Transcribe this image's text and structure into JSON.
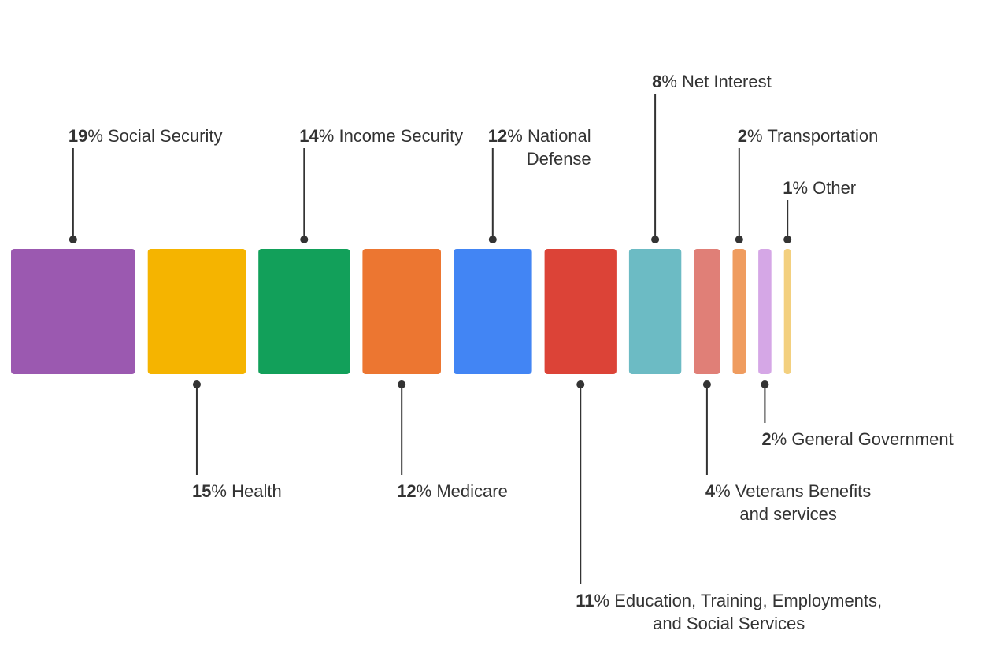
{
  "chart_data": {
    "type": "bar",
    "title": "",
    "unit_suffix": "%",
    "categories": [
      "Social Security",
      "Health",
      "Income Security",
      "Medicare",
      "National Defense",
      "Education, Training, Employments, and Social Services",
      "Net Interest",
      "Veterans Benefits and services",
      "Transportation",
      "General Government",
      "Other"
    ],
    "values": [
      19,
      15,
      14,
      12,
      12,
      11,
      8,
      4,
      2,
      2,
      1
    ],
    "colors": [
      "#9b59b0",
      "#f5b400",
      "#12a05a",
      "#ec7631",
      "#4285f4",
      "#dc4337",
      "#6cbbc4",
      "#e07f77",
      "#ef9c5f",
      "#d5a7e6",
      "#f3d07f"
    ],
    "labels": [
      {
        "pct": "19",
        "lines": [
          "% Social Security"
        ],
        "side": "top"
      },
      {
        "pct": "15",
        "lines": [
          "% Health"
        ],
        "side": "bottom"
      },
      {
        "pct": "14",
        "lines": [
          "% Income Security"
        ],
        "side": "top"
      },
      {
        "pct": "12",
        "lines": [
          "% Medicare"
        ],
        "side": "bottom"
      },
      {
        "pct": "12",
        "lines": [
          "% National",
          "Defense"
        ],
        "side": "top"
      },
      {
        "pct": "11",
        "lines": [
          "% Education, Training, Employments,",
          "and Social Services"
        ],
        "side": "bottom"
      },
      {
        "pct": "8",
        "lines": [
          "% Net Interest"
        ],
        "side": "top"
      },
      {
        "pct": "4",
        "lines": [
          "% Veterans Benefits",
          "and services"
        ],
        "side": "bottom"
      },
      {
        "pct": "2",
        "lines": [
          "% Transportation"
        ],
        "side": "top"
      },
      {
        "pct": "2",
        "lines": [
          "% General Government"
        ],
        "side": "bottom"
      },
      {
        "pct": "1",
        "lines": [
          "% Other"
        ],
        "side": "top"
      }
    ]
  }
}
